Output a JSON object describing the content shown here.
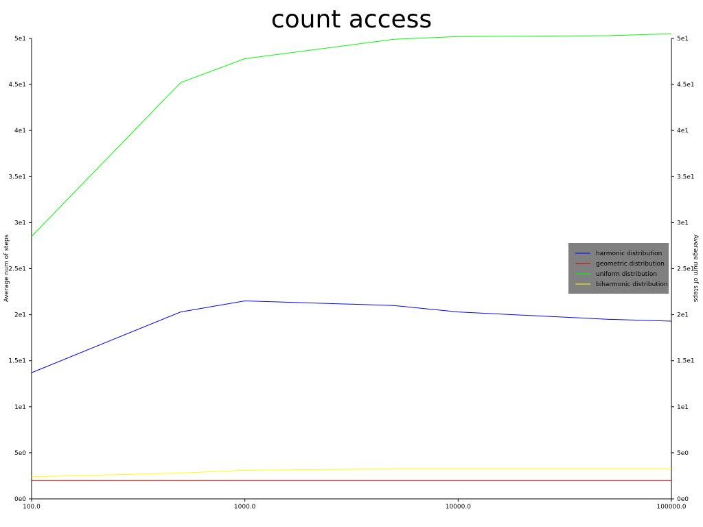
{
  "chart_data": {
    "type": "line",
    "title": "count access",
    "xlabel": "",
    "ylabel": "Average num of steps",
    "ylabel_right": "Average num of steps",
    "x_scale": "log",
    "xlim": [
      100,
      100000
    ],
    "ylim": [
      0,
      50
    ],
    "x_ticks": [
      100,
      1000,
      10000,
      100000
    ],
    "x_tick_labels": [
      "100.0",
      "1000.0",
      "10000.0",
      "100000.0"
    ],
    "y_ticks": [
      0,
      5,
      10,
      15,
      20,
      25,
      30,
      35,
      40,
      45,
      50
    ],
    "y_tick_labels": [
      "0e0",
      "5e0",
      "1e1",
      "1.5e1",
      "2e1",
      "2.5e1",
      "3e1",
      "3.5e1",
      "4e1",
      "4.5e1",
      "5e1"
    ],
    "grid": false,
    "legend_position": "right",
    "x": [
      100,
      500,
      1000,
      5000,
      10000,
      50000,
      100000
    ],
    "series": [
      {
        "name": "harmonic distribution",
        "color": "#0000ff",
        "values": [
          13.7,
          20.3,
          21.5,
          21.0,
          20.3,
          19.5,
          19.3
        ]
      },
      {
        "name": "geometric distribution",
        "color": "#cc0000",
        "values": [
          2.0,
          2.0,
          2.0,
          2.0,
          2.0,
          2.0,
          2.0
        ]
      },
      {
        "name": "uniform distribution",
        "color": "#00ff00",
        "values": [
          28.5,
          45.2,
          47.8,
          49.9,
          50.2,
          50.3,
          50.5
        ]
      },
      {
        "name": "biharmonic distribution",
        "color": "#ffff00",
        "values": [
          2.4,
          2.8,
          3.1,
          3.25,
          3.25,
          3.25,
          3.25
        ]
      }
    ]
  }
}
